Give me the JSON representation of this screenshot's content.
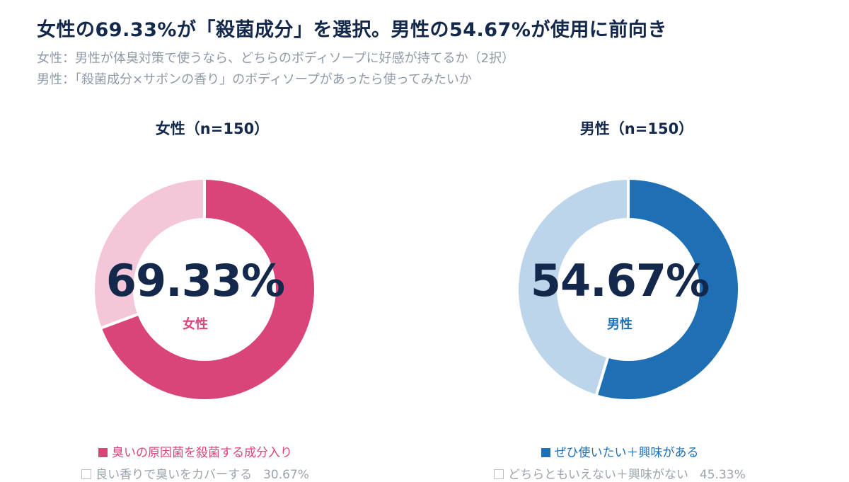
{
  "title": "女性の69.33%が「殺菌成分」を選択。男性の54.67%が使用に前向き",
  "subtitle_lines": [
    "女性：男性が体臭対策で使うなら、どちらのボディソープに好感が持てるか（2択）",
    "男性：「殺菌成分×サボンの香り」のボディソープがあったら使ってみたいか"
  ],
  "panels": [
    {
      "title": "女性（n=150）",
      "center_value": "69.33%",
      "center_label": "女性",
      "legend": [
        {
          "label": "臭いの原因菌を殺菌する成分入り",
          "value_text": ""
        },
        {
          "label": "良い香りで臭いをカバーする",
          "value_text": "30.67%"
        }
      ],
      "colors": {
        "main": "#d9447b",
        "light": "#f4c6d9"
      }
    },
    {
      "title": "男性（n=150）",
      "center_value": "54.67%",
      "center_label": "男性",
      "legend": [
        {
          "label": "ぜひ使いたい＋興味がある",
          "value_text": ""
        },
        {
          "label": "どちらともいえない＋興味がない",
          "value_text": "45.33%"
        }
      ],
      "colors": {
        "main": "#1f6fb5",
        "light": "#bdd5ea"
      }
    }
  ],
  "chart_data": [
    {
      "type": "pie",
      "title": "女性（n=150）",
      "categories": [
        "臭いの原因菌を殺菌する成分入り",
        "良い香りで臭いをカバーする"
      ],
      "values": [
        69.33,
        30.67
      ],
      "colors": [
        "#d9447b",
        "#f4c6d9"
      ],
      "donut": true
    },
    {
      "type": "pie",
      "title": "男性（n=150）",
      "categories": [
        "ぜひ使いたい＋興味がある",
        "どちらともいえない＋興味がない"
      ],
      "values": [
        54.67,
        45.33
      ],
      "colors": [
        "#1f6fb5",
        "#bdd5ea"
      ],
      "donut": true
    }
  ]
}
